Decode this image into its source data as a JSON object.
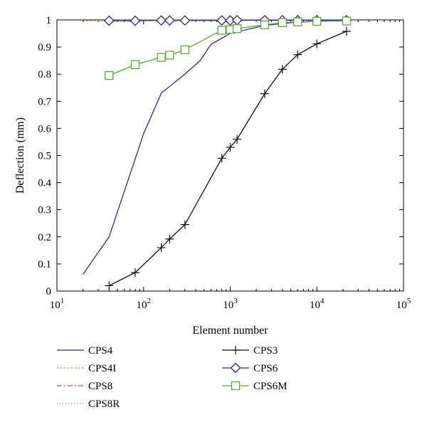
{
  "chart_data": {
    "type": "line",
    "xscale": "log",
    "xlim": [
      10,
      100000
    ],
    "ylim": [
      0,
      1
    ],
    "xlabel": "Element number",
    "ylabel": "Deflection (mm)",
    "x_ticks": [
      {
        "value": 10,
        "base": "10",
        "exp": "1"
      },
      {
        "value": 100,
        "base": "10",
        "exp": "2"
      },
      {
        "value": 1000,
        "base": "10",
        "exp": "3"
      },
      {
        "value": 10000,
        "base": "10",
        "exp": "4"
      },
      {
        "value": 100000,
        "base": "10",
        "exp": "5"
      }
    ],
    "y_ticks": [
      {
        "value": 0,
        "label": "0"
      },
      {
        "value": 0.1,
        "label": "0.1"
      },
      {
        "value": 0.2,
        "label": "0.2"
      },
      {
        "value": 0.3,
        "label": "0.3"
      },
      {
        "value": 0.4,
        "label": "0.4"
      },
      {
        "value": 0.5,
        "label": "0.5"
      },
      {
        "value": 0.6,
        "label": "0.6"
      },
      {
        "value": 0.7,
        "label": "0.7"
      },
      {
        "value": 0.8,
        "label": "0.8"
      },
      {
        "value": 0.9,
        "label": "0.9"
      },
      {
        "value": 1,
        "label": "1"
      }
    ],
    "grid": false,
    "legend_position": "bottom",
    "series": [
      {
        "name": "CPS4",
        "color": "#2b2b8c",
        "dash": "",
        "marker": "none",
        "x": [
          20,
          40,
          100,
          160,
          300,
          450,
          600,
          1000,
          2500,
          5000,
          10000,
          22000
        ],
        "y": [
          0.062,
          0.2,
          0.58,
          0.73,
          0.8,
          0.85,
          0.91,
          0.95,
          0.98,
          0.99,
          0.995,
          0.998
        ]
      },
      {
        "name": "CPS4I",
        "color": "#e8743b",
        "dash": "2,3",
        "marker": "none",
        "x": [
          20,
          40,
          80,
          160,
          300,
          800,
          1200,
          2500,
          5000,
          10000,
          22000
        ],
        "y": [
          0.997,
          0.998,
          0.999,
          0.999,
          0.999,
          0.999,
          1.0,
          1.0,
          1.0,
          1.0,
          1.0
        ]
      },
      {
        "name": "CPS8",
        "color": "#b04ab0",
        "dash": "7,3,2,3",
        "marker": "none",
        "x": [
          40,
          80,
          160,
          300,
          800,
          1200,
          2500,
          5000,
          10000,
          22000
        ],
        "y": [
          0.999,
          0.999,
          0.999,
          1.0,
          1.0,
          1.0,
          1.0,
          1.0,
          1.0,
          1.0
        ]
      },
      {
        "name": "CPS8R",
        "color": "#55aaaa",
        "dash": "1,3",
        "marker": "none",
        "x": [
          40,
          80,
          160,
          300,
          800,
          1200,
          2500,
          5000,
          10000,
          22000
        ],
        "y": [
          1.0,
          1.0,
          1.0,
          1.0,
          1.0,
          1.0,
          1.0,
          1.0,
          1.0,
          1.0
        ]
      },
      {
        "name": "CPS3",
        "color": "#111111",
        "dash": "",
        "marker": "plus",
        "x": [
          40,
          80,
          160,
          200,
          300,
          800,
          1000,
          1200,
          2500,
          4000,
          6000,
          10000,
          22000
        ],
        "y": [
          0.02,
          0.068,
          0.16,
          0.192,
          0.245,
          0.49,
          0.53,
          0.56,
          0.728,
          0.818,
          0.872,
          0.912,
          0.958
        ]
      },
      {
        "name": "CPS6",
        "color": "#2b2b8c",
        "dash": "",
        "marker": "diamond",
        "x": [
          40,
          80,
          160,
          200,
          300,
          800,
          1000,
          1200,
          2500,
          4000,
          6000,
          10000,
          22000
        ],
        "y": [
          0.997,
          0.997,
          0.998,
          0.998,
          0.998,
          0.998,
          0.998,
          0.999,
          0.999,
          0.999,
          0.999,
          0.999,
          0.999
        ]
      },
      {
        "name": "CPS6M",
        "color": "#5aaa32",
        "dash": "",
        "marker": "square",
        "x": [
          40,
          80,
          160,
          200,
          300,
          800,
          1000,
          1200,
          2500,
          4000,
          6000,
          10000,
          22000
        ],
        "y": [
          0.795,
          0.835,
          0.862,
          0.87,
          0.89,
          0.962,
          0.965,
          0.968,
          0.982,
          0.99,
          0.993,
          0.995,
          0.996
        ]
      }
    ]
  }
}
